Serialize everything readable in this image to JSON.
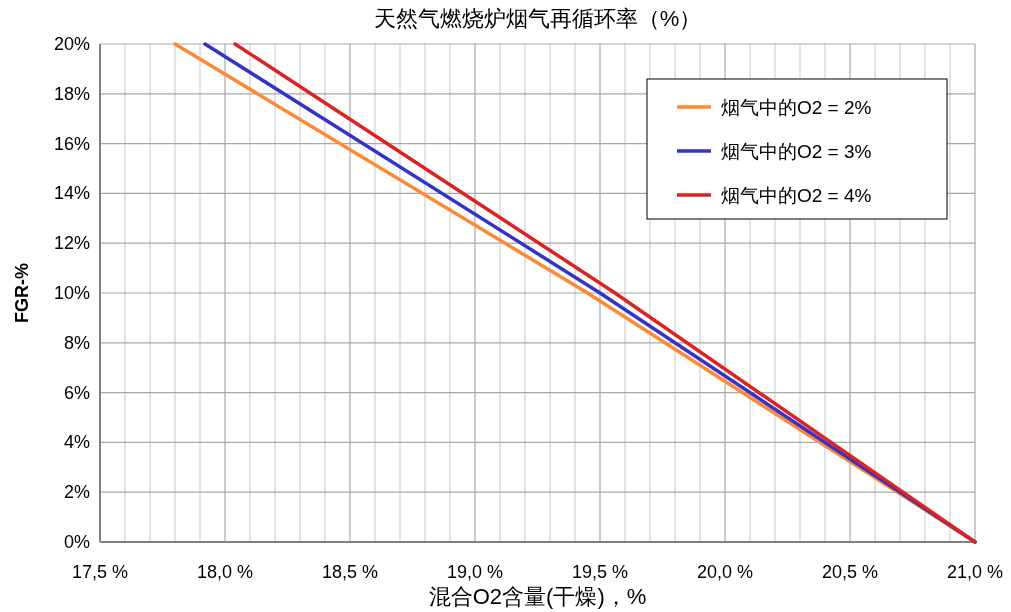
{
  "chart_data": {
    "type": "line",
    "title": "天然气燃烧炉烟气再循环率（%）",
    "xlabel": "混合O2含量(干燥)，%",
    "ylabel": "FGR-%",
    "xlim": [
      17.5,
      21.0
    ],
    "ylim": [
      0,
      20
    ],
    "xticks": [
      {
        "value": 17.5,
        "label": "17,5 %"
      },
      {
        "value": 17.6,
        "label": null
      },
      {
        "value": 17.7,
        "label": null
      },
      {
        "value": 17.8,
        "label": null
      },
      {
        "value": 17.9,
        "label": null
      },
      {
        "value": 18.0,
        "label": "18,0 %"
      },
      {
        "value": 18.1,
        "label": null
      },
      {
        "value": 18.2,
        "label": null
      },
      {
        "value": 18.3,
        "label": null
      },
      {
        "value": 18.4,
        "label": null
      },
      {
        "value": 18.5,
        "label": "18,5 %"
      },
      {
        "value": 18.6,
        "label": null
      },
      {
        "value": 18.7,
        "label": null
      },
      {
        "value": 18.8,
        "label": null
      },
      {
        "value": 18.9,
        "label": null
      },
      {
        "value": 19.0,
        "label": "19,0 %"
      },
      {
        "value": 19.1,
        "label": null
      },
      {
        "value": 19.2,
        "label": null
      },
      {
        "value": 19.3,
        "label": null
      },
      {
        "value": 19.4,
        "label": null
      },
      {
        "value": 19.5,
        "label": "19,5 %"
      },
      {
        "value": 19.6,
        "label": null
      },
      {
        "value": 19.7,
        "label": null
      },
      {
        "value": 19.8,
        "label": null
      },
      {
        "value": 19.9,
        "label": null
      },
      {
        "value": 20.0,
        "label": "20,0 %"
      },
      {
        "value": 20.1,
        "label": null
      },
      {
        "value": 20.2,
        "label": null
      },
      {
        "value": 20.3,
        "label": null
      },
      {
        "value": 20.4,
        "label": null
      },
      {
        "value": 20.5,
        "label": "20,5 %"
      },
      {
        "value": 20.6,
        "label": null
      },
      {
        "value": 20.7,
        "label": null
      },
      {
        "value": 20.8,
        "label": null
      },
      {
        "value": 20.9,
        "label": null
      },
      {
        "value": 21.0,
        "label": "21,0 %"
      }
    ],
    "yticks": [
      {
        "value": 0,
        "label": "0%"
      },
      {
        "value": 2,
        "label": "2%"
      },
      {
        "value": 4,
        "label": "4%"
      },
      {
        "value": 6,
        "label": "6%"
      },
      {
        "value": 8,
        "label": "8%"
      },
      {
        "value": 10,
        "label": "10%"
      },
      {
        "value": 12,
        "label": "12%"
      },
      {
        "value": 14,
        "label": "14%"
      },
      {
        "value": 16,
        "label": "16%"
      },
      {
        "value": 18,
        "label": "18%"
      },
      {
        "value": 20,
        "label": "20%"
      }
    ],
    "grid": true,
    "legend": "top right",
    "marker": "none",
    "line_style": "solid",
    "series": [
      {
        "name": "烟气中的O2 = 2%",
        "color": "#ff8833",
        "x": [
          17.8,
          19.45,
          21.0
        ],
        "values": [
          20,
          10,
          0
        ]
      },
      {
        "name": "烟气中的O2 = 3%",
        "color": "#3333cc",
        "x": [
          17.92,
          19.5,
          21.0
        ],
        "values": [
          20,
          10,
          0
        ]
      },
      {
        "name": "烟气中的O2 = 4%",
        "color": "#dd2222",
        "x": [
          18.04,
          19.56,
          21.0
        ],
        "values": [
          20,
          10,
          0
        ]
      }
    ]
  }
}
